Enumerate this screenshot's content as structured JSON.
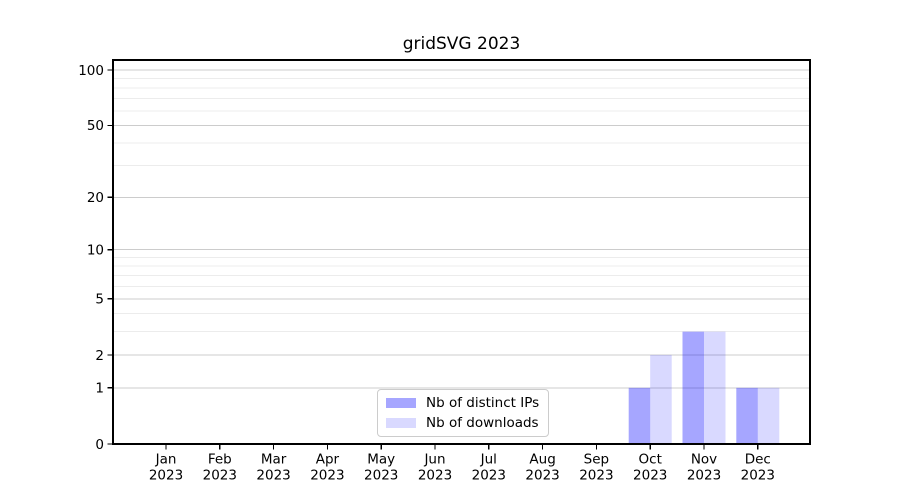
{
  "chart_data": {
    "type": "bar",
    "title": "gridSVG 2023",
    "xlabel": "",
    "ylabel": "",
    "categories": [
      "Jan",
      "Feb",
      "Mar",
      "Apr",
      "May",
      "Jun",
      "Jul",
      "Aug",
      "Sep",
      "Oct",
      "Nov",
      "Dec"
    ],
    "year_label": "2023",
    "series": [
      {
        "name": "Nb of distinct IPs",
        "color": "#0000FF",
        "alpha": 0.35,
        "values": [
          0,
          0,
          0,
          0,
          0,
          0,
          0,
          0,
          0,
          1,
          3,
          1
        ]
      },
      {
        "name": "Nb of downloads",
        "color": "#0000FF",
        "alpha": 0.15,
        "values": [
          0,
          0,
          0,
          0,
          0,
          0,
          0,
          0,
          0,
          2,
          3,
          1
        ]
      }
    ],
    "y_axis": {
      "scale": "log1p",
      "ticks": [
        0,
        1,
        2,
        5,
        10,
        20,
        50,
        100
      ],
      "minor_gridlines": [
        3,
        4,
        6,
        7,
        8,
        9,
        30,
        40,
        60,
        70,
        80,
        90
      ],
      "range": [
        0,
        113
      ]
    },
    "legend": {
      "position": "bottom-center-inside"
    },
    "grid": true,
    "colors": {
      "background": "#FFFFFF",
      "frame": "#000000",
      "text": "#000000",
      "major_grid": "#CCCCCC",
      "minor_grid": "#ECECEC",
      "legend_border": "#CCCCCC"
    }
  }
}
